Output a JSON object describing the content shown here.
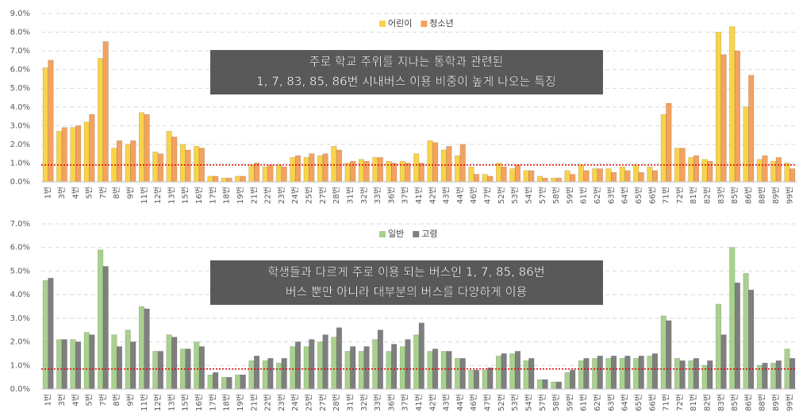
{
  "chart_data": [
    {
      "type": "bar",
      "categories": [
        "1번",
        "3번",
        "4번",
        "5번",
        "7번",
        "8번",
        "9번",
        "11번",
        "12번",
        "13번",
        "15번",
        "16번",
        "17번",
        "18번",
        "19번",
        "21번",
        "22번",
        "23번",
        "24번",
        "25번",
        "27번",
        "28번",
        "31번",
        "32번",
        "33번",
        "36번",
        "37번",
        "41번",
        "42번",
        "43번",
        "44번",
        "46번",
        "47번",
        "52번",
        "53번",
        "54번",
        "57번",
        "58번",
        "59번",
        "61번",
        "62번",
        "63번",
        "64번",
        "65번",
        "66번",
        "71번",
        "72번",
        "81번",
        "82번",
        "83번",
        "85번",
        "86번",
        "88번",
        "89번",
        "99번"
      ],
      "series": [
        {
          "name": "어린이",
          "color": "#f9d34a",
          "values": [
            6.1,
            2.7,
            2.9,
            3.2,
            6.6,
            1.8,
            2.0,
            3.7,
            1.6,
            2.7,
            2.0,
            1.9,
            0.3,
            0.2,
            0.3,
            0.9,
            0.8,
            0.9,
            1.3,
            1.3,
            1.4,
            1.9,
            1.0,
            1.2,
            1.3,
            1.1,
            1.1,
            1.5,
            2.2,
            1.7,
            1.4,
            0.8,
            0.4,
            1.0,
            0.7,
            0.6,
            0.3,
            0.2,
            0.6,
            0.9,
            0.7,
            0.7,
            0.8,
            0.9,
            0.8,
            3.6,
            1.8,
            1.3,
            1.2,
            8.0,
            8.3,
            4.0,
            1.2,
            1.1,
            1.0
          ]
        },
        {
          "name": "청소년",
          "color": "#f4a261",
          "values": [
            6.5,
            2.9,
            3.0,
            3.6,
            7.5,
            2.2,
            2.2,
            3.6,
            1.5,
            2.4,
            1.7,
            1.8,
            0.3,
            0.2,
            0.3,
            1.0,
            0.9,
            0.8,
            1.4,
            1.5,
            1.5,
            1.7,
            1.1,
            1.1,
            1.3,
            1.0,
            1.0,
            1.0,
            2.1,
            1.9,
            2.0,
            0.4,
            0.3,
            0.8,
            0.9,
            0.6,
            0.2,
            0.2,
            0.4,
            0.6,
            0.7,
            0.5,
            0.6,
            0.5,
            0.6,
            4.2,
            1.8,
            1.4,
            1.1,
            6.8,
            7.0,
            5.7,
            1.4,
            1.3,
            0.7
          ]
        }
      ],
      "ylim": [
        0,
        9
      ],
      "yticks": [
        {
          "value": 0,
          "label": "0.0%"
        },
        {
          "value": 1,
          "label": "1.0%"
        },
        {
          "value": 2,
          "label": "2.0%"
        },
        {
          "value": 3,
          "label": "3.0%"
        },
        {
          "value": 4,
          "label": "4.0%"
        },
        {
          "value": 5,
          "label": "5.0%"
        },
        {
          "value": 6,
          "label": "6.0%"
        },
        {
          "value": 7,
          "label": "7.0%"
        },
        {
          "value": 8,
          "label": "8.0%"
        },
        {
          "value": 9,
          "label": "9.0%"
        }
      ],
      "grid": true,
      "legend": "top",
      "reference_line": 0.9,
      "annotation": [
        "주로 학교 주위를 지나는 통학과 관련된",
        "1, 7, 83, 85, 86번 시내버스 이용 비중이 높게 나오는 특징"
      ]
    },
    {
      "type": "bar",
      "categories": [
        "1번",
        "3번",
        "4번",
        "5번",
        "7번",
        "8번",
        "9번",
        "11번",
        "12번",
        "13번",
        "15번",
        "16번",
        "17번",
        "18번",
        "19번",
        "21번",
        "22번",
        "23번",
        "24번",
        "25번",
        "27번",
        "28번",
        "31번",
        "32번",
        "33번",
        "36번",
        "37번",
        "41번",
        "42번",
        "43번",
        "44번",
        "46번",
        "47번",
        "52번",
        "53번",
        "54번",
        "57번",
        "58번",
        "59번",
        "61번",
        "62번",
        "63번",
        "64번",
        "65번",
        "66번",
        "71번",
        "72번",
        "81번",
        "82번",
        "83번",
        "85번",
        "86번",
        "88번",
        "89번",
        "99번"
      ],
      "series": [
        {
          "name": "일반",
          "color": "#a9d18e",
          "values": [
            4.6,
            2.1,
            2.1,
            2.4,
            5.9,
            2.3,
            2.5,
            3.5,
            1.6,
            2.3,
            1.7,
            2.0,
            0.6,
            0.5,
            0.6,
            1.2,
            1.2,
            1.1,
            1.8,
            1.8,
            2.0,
            2.2,
            1.6,
            1.6,
            2.1,
            1.6,
            1.8,
            2.3,
            1.6,
            1.6,
            1.3,
            0.8,
            0.8,
            1.4,
            1.5,
            1.2,
            0.4,
            0.3,
            0.7,
            1.2,
            1.3,
            1.3,
            1.3,
            1.3,
            1.4,
            3.1,
            1.3,
            1.2,
            1.0,
            3.6,
            6.0,
            4.9,
            1.0,
            1.1,
            1.7
          ]
        },
        {
          "name": "고령",
          "color": "#7f7f7f",
          "values": [
            4.7,
            2.1,
            2.0,
            2.3,
            5.2,
            1.8,
            2.0,
            3.4,
            1.6,
            2.2,
            1.7,
            1.8,
            0.7,
            0.5,
            0.6,
            1.4,
            1.3,
            1.3,
            2.0,
            2.1,
            2.3,
            2.6,
            1.8,
            1.8,
            2.5,
            1.9,
            2.1,
            2.8,
            1.7,
            1.6,
            1.3,
            0.8,
            0.9,
            1.5,
            1.6,
            1.3,
            0.4,
            0.3,
            0.8,
            1.3,
            1.4,
            1.4,
            1.4,
            1.4,
            1.5,
            2.9,
            1.2,
            1.3,
            1.2,
            2.3,
            4.5,
            4.2,
            1.1,
            1.2,
            1.3
          ]
        }
      ],
      "ylim": [
        0,
        7
      ],
      "yticks": [
        {
          "value": 0,
          "label": "0.0%"
        },
        {
          "value": 1,
          "label": "1.0%"
        },
        {
          "value": 2,
          "label": "2.0%"
        },
        {
          "value": 3,
          "label": "3.0%"
        },
        {
          "value": 4,
          "label": "4.0%"
        },
        {
          "value": 5,
          "label": "5.0%"
        },
        {
          "value": 6,
          "label": "6.0%"
        },
        {
          "value": 7,
          "label": "7.0%"
        }
      ],
      "grid": true,
      "legend": "top",
      "reference_line": 0.85,
      "annotation": [
        "학생들과 다르게 주로 이용 되는 버스인 1, 7, 85, 86번",
        "버스 뿐만 아니라 대부분의 버스를 다양하게 이용"
      ]
    }
  ]
}
